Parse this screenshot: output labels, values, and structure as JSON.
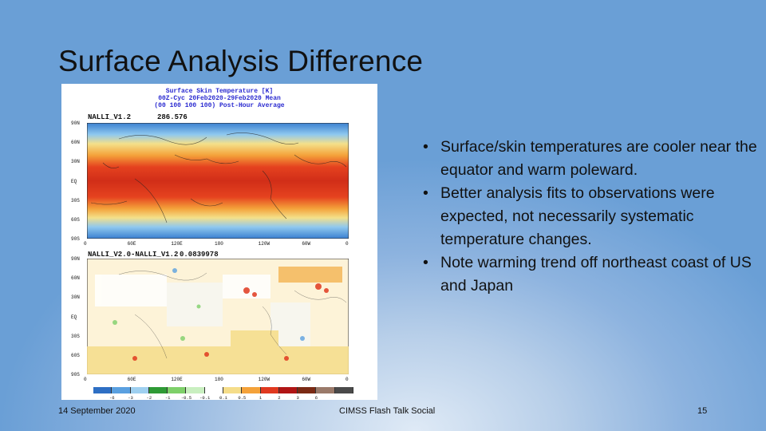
{
  "title": "Surface Analysis Difference",
  "figure": {
    "title_line1": "Surface Skin Temperature [K]",
    "title_line2": "00Z-Cyc 20Feb2020-29Feb2020 Mean",
    "title_line3": "(00 100 100 100) Post-Hour Average",
    "panel1_label": "NALLI_V1.2",
    "panel1_value": "286.576",
    "panel2_label": "NALLI_V2.0-NALLI_V1.2",
    "panel2_value": "0.0839978",
    "lat_labels": [
      "90N",
      "60N",
      "30N",
      "EQ",
      "30S",
      "60S",
      "90S"
    ],
    "lon_labels": [
      "0",
      "60E",
      "120E",
      "180",
      "120W",
      "60W",
      "0"
    ],
    "colorbar_ticks": [
      "-6",
      "-3",
      "-2",
      "-1",
      "-0.5",
      "-0.1",
      "0.1",
      "0.5",
      "1",
      "2",
      "3",
      "6"
    ],
    "colorbar_colors": [
      "#2e6fc4",
      "#5aa0e0",
      "#9fd0f0",
      "#2e9a35",
      "#7ed06a",
      "#c9efc0",
      "#ffffff",
      "#f5dd8a",
      "#f4a23a",
      "#e0391f",
      "#b01515",
      "#7a2a14",
      "#9a7a6a",
      "#4a4a4a"
    ]
  },
  "bullets": [
    "Surface/skin temperatures are cooler near the equator and warm poleward.",
    "Better analysis fits to observations were expected, not necessarily systematic temperature changes.",
    "Note warming trend off northeast coast of US and Japan"
  ],
  "bullet_char": "•",
  "footer": {
    "date": "14 September 2020",
    "center": "CIMSS Flash Talk Social",
    "page": "15"
  }
}
